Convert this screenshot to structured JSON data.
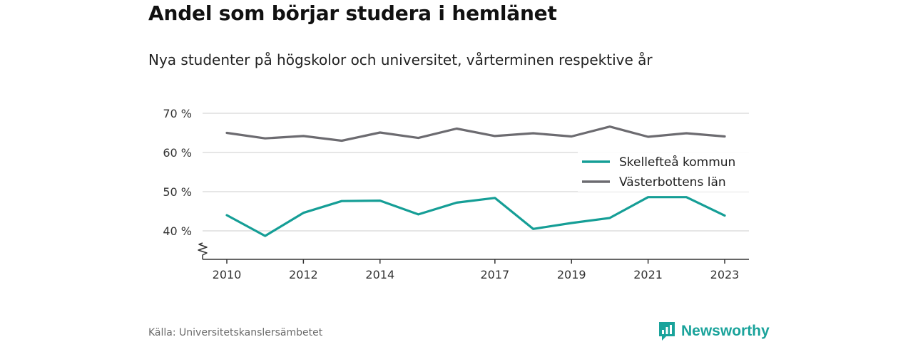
{
  "chart_data": {
    "type": "line",
    "title": "Andel som börjar studera i hemlänet",
    "subtitle": "Nya studenter på högskolor och universitet, vårterminen respektive år",
    "x": [
      2010,
      2011,
      2012,
      2013,
      2014,
      2015,
      2016,
      2017,
      2018,
      2019,
      2020,
      2021,
      2022,
      2023
    ],
    "x_ticks": [
      {
        "value": 2010,
        "label": "2010"
      },
      {
        "value": 2012,
        "label": "2012"
      },
      {
        "value": 2014,
        "label": "2014"
      },
      {
        "value": 2017,
        "label": "2017"
      },
      {
        "value": 2019,
        "label": "2019"
      },
      {
        "value": 2021,
        "label": "2021"
      },
      {
        "value": 2023,
        "label": "2023"
      }
    ],
    "y_ticks": [
      {
        "value": 40,
        "label": "40 %"
      },
      {
        "value": 50,
        "label": "50 %"
      },
      {
        "value": 60,
        "label": "60 %"
      },
      {
        "value": 70,
        "label": "70 %"
      }
    ],
    "ylim": [
      32.5,
      70
    ],
    "y_axis_break": true,
    "grid": true,
    "legend_position": "right",
    "series": [
      {
        "name": "Skellefteå kommun",
        "color": "#159e96",
        "values": [
          44.0,
          38.7,
          44.6,
          47.6,
          47.7,
          44.2,
          47.2,
          48.4,
          40.5,
          42.0,
          43.3,
          48.6,
          48.6,
          43.9
        ]
      },
      {
        "name": "Västerbottens län",
        "color": "#6c6b70",
        "values": [
          65.0,
          63.6,
          64.2,
          63.0,
          65.1,
          63.7,
          66.1,
          64.2,
          64.9,
          64.1,
          66.6,
          64.0,
          64.9,
          64.1
        ]
      }
    ]
  },
  "footer": {
    "source": "Källa: Universitetskanslersämbetet",
    "brand": "Newsworthy",
    "brand_color": "#1aa39b",
    "brand_icon": "bar-chart-speech-bubble-icon"
  }
}
